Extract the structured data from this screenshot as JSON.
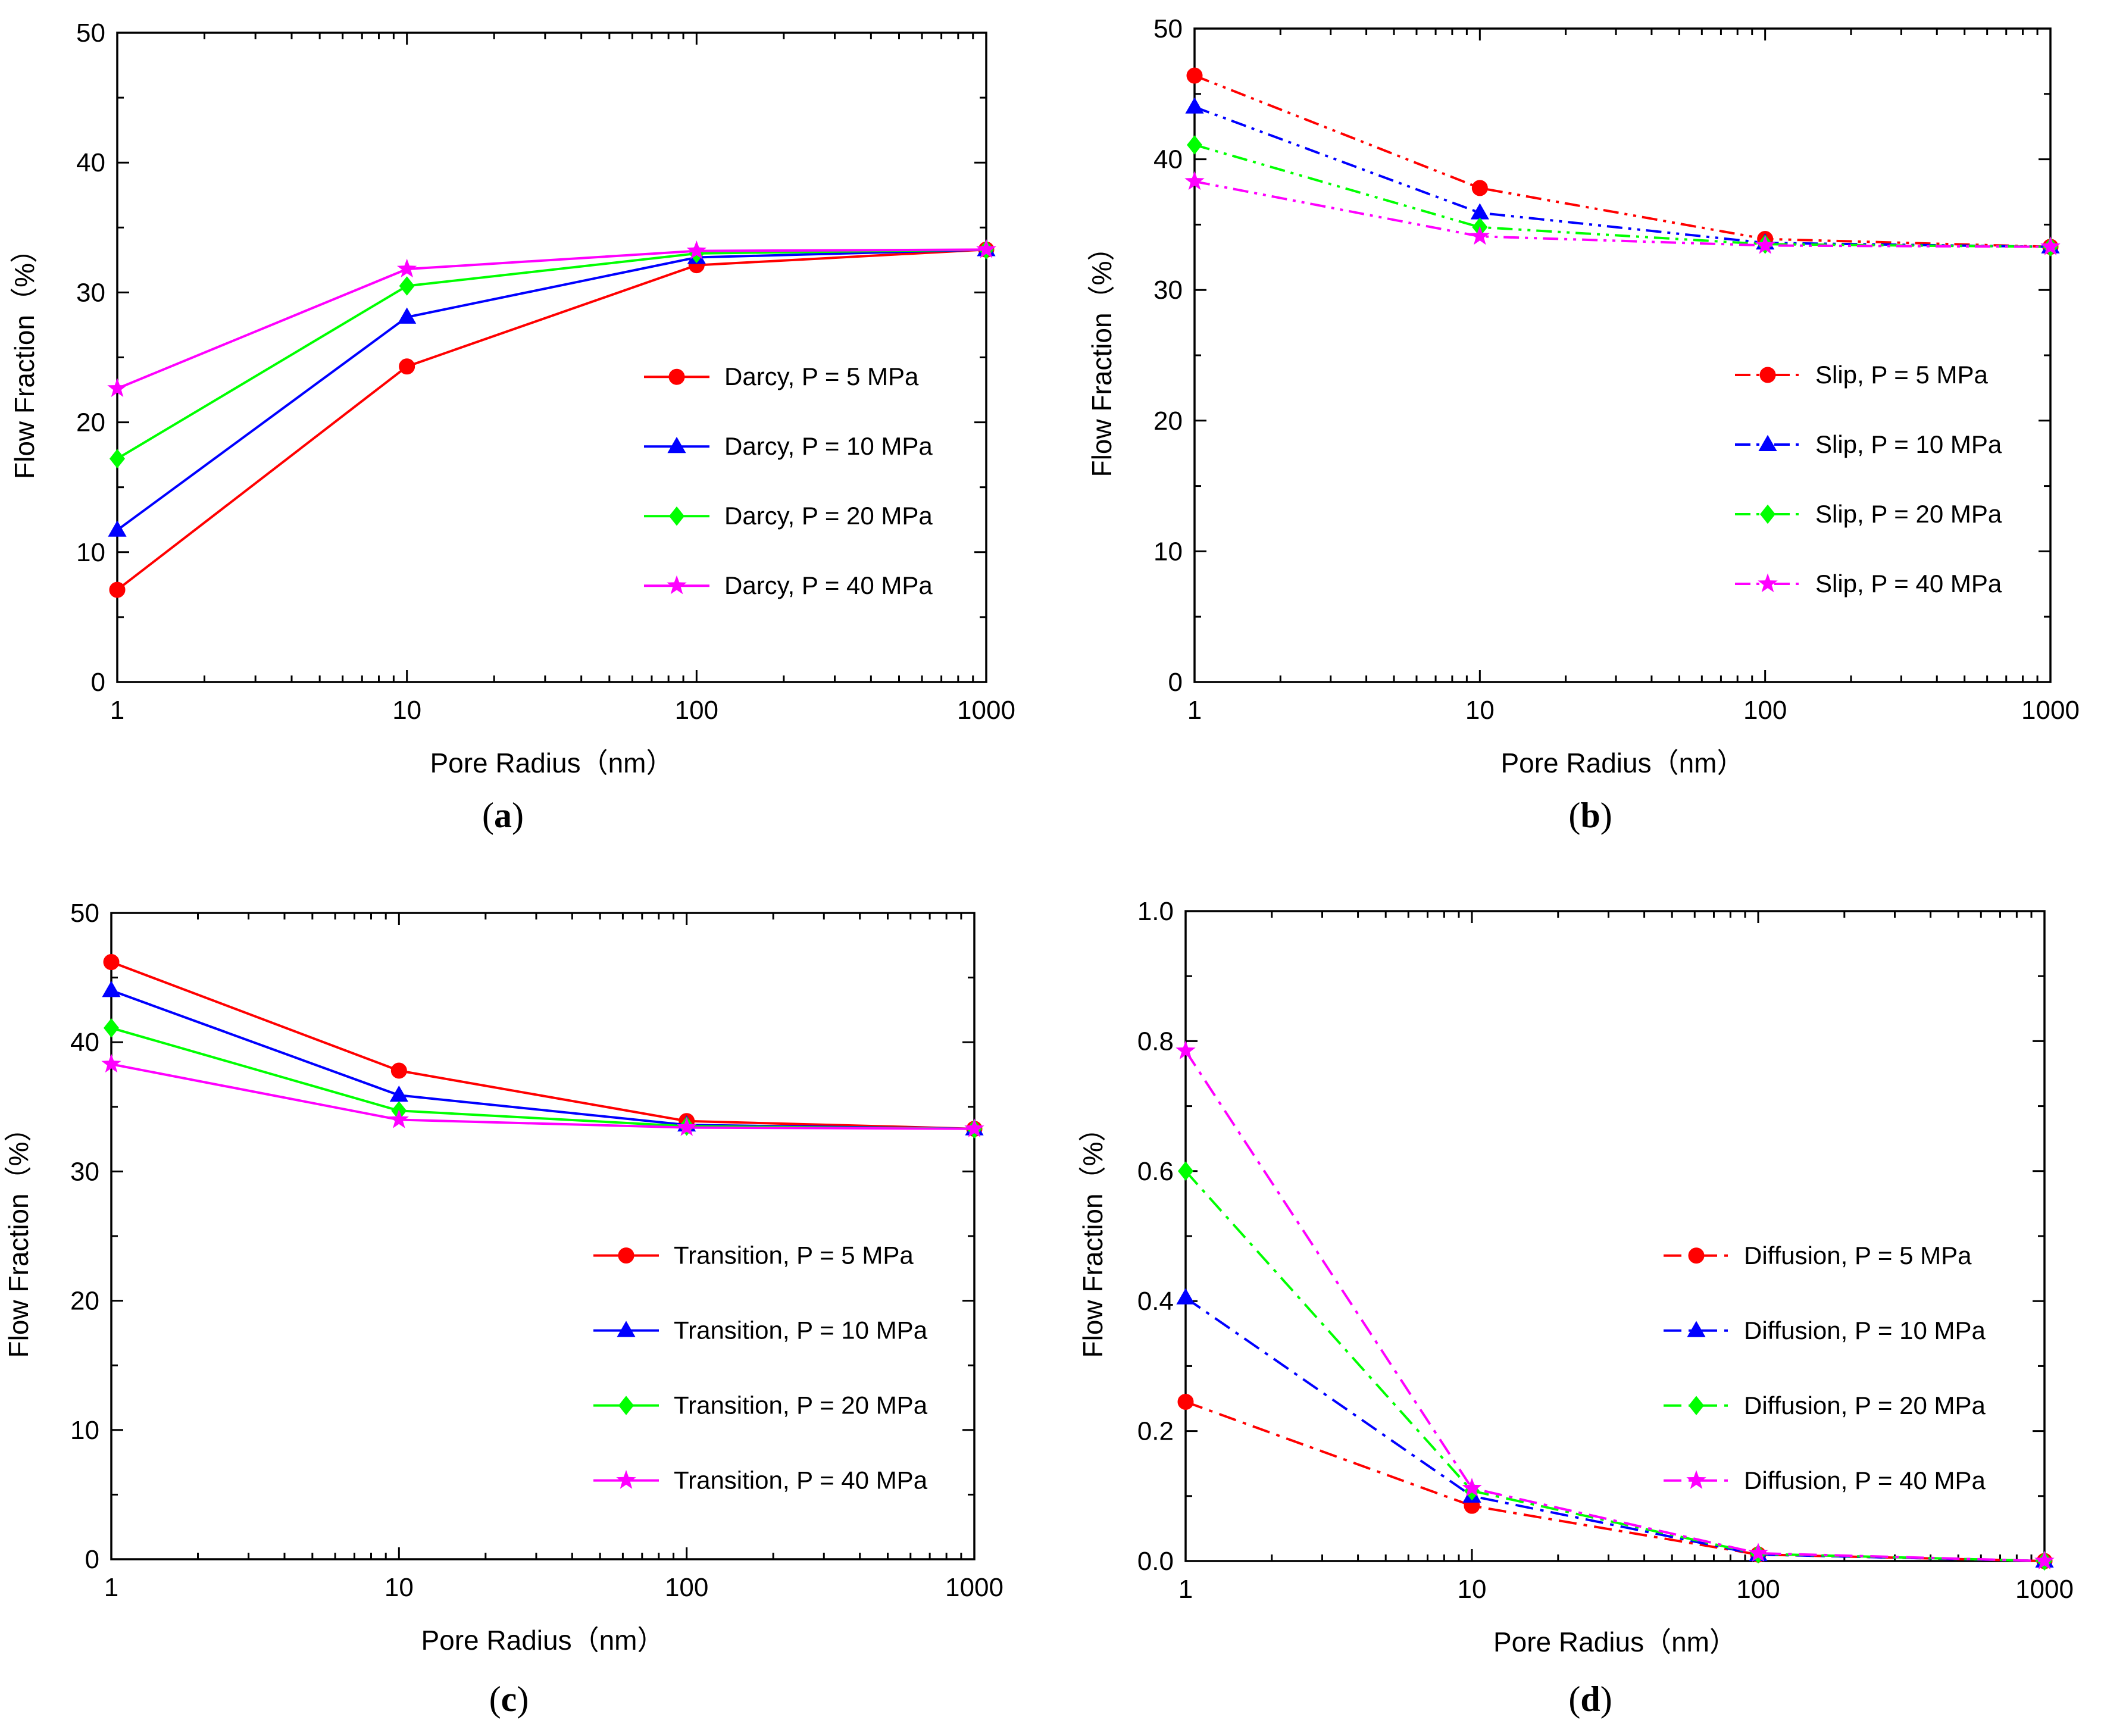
{
  "chart_data": [
    {
      "panel": "a",
      "type": "line",
      "xscale": "log",
      "xlim": [
        1,
        1000
      ],
      "ylim": [
        0,
        50
      ],
      "xticks": [
        "1",
        "10",
        "100",
        "1000"
      ],
      "yticks": [
        "0",
        "10",
        "20",
        "30",
        "40",
        "50"
      ],
      "xlabel": "Pore Radius（nm）",
      "ylabel": "Flow Fraction（%）",
      "panel_label": "a",
      "line_style": "solid",
      "legend_position": "right-middle",
      "x": [
        1,
        10,
        100,
        1000
      ],
      "series": [
        {
          "name": "Darcy, P = 5 MPa",
          "color": "#ff0000",
          "marker": "circle",
          "values": [
            7.1,
            24.3,
            32.1,
            33.3
          ]
        },
        {
          "name": "Darcy, P = 10 MPa",
          "color": "#0000ff",
          "marker": "triangle",
          "values": [
            11.7,
            28.1,
            32.7,
            33.3
          ]
        },
        {
          "name": "Darcy, P = 20 MPa",
          "color": "#00ff00",
          "marker": "diamond",
          "values": [
            17.2,
            30.5,
            33.0,
            33.3
          ]
        },
        {
          "name": "Darcy, P = 40 MPa",
          "color": "#ff00ff",
          "marker": "star",
          "values": [
            22.6,
            31.8,
            33.2,
            33.3
          ]
        }
      ]
    },
    {
      "panel": "b",
      "type": "line",
      "xscale": "log",
      "xlim": [
        1,
        1000
      ],
      "ylim": [
        0,
        50
      ],
      "xticks": [
        "1",
        "10",
        "100",
        "1000"
      ],
      "yticks": [
        "0",
        "10",
        "20",
        "30",
        "40",
        "50"
      ],
      "xlabel": "Pore Radius（nm）",
      "ylabel": "Flow Fraction（%）",
      "panel_label": "b",
      "line_style": "dashdotdot",
      "legend_position": "right-middle",
      "x": [
        1,
        10,
        100,
        1000
      ],
      "series": [
        {
          "name": "Slip, P = 5 MPa",
          "color": "#ff0000",
          "marker": "circle",
          "values": [
            46.4,
            37.8,
            33.9,
            33.3
          ]
        },
        {
          "name": "Slip, P = 10 MPa",
          "color": "#0000ff",
          "marker": "triangle",
          "values": [
            44.0,
            35.9,
            33.6,
            33.3
          ]
        },
        {
          "name": "Slip, P = 20 MPa",
          "color": "#00ff00",
          "marker": "diamond",
          "values": [
            41.1,
            34.8,
            33.5,
            33.3
          ]
        },
        {
          "name": "Slip, P = 40 MPa",
          "color": "#ff00ff",
          "marker": "star",
          "values": [
            38.3,
            34.1,
            33.4,
            33.3
          ]
        }
      ]
    },
    {
      "panel": "c",
      "type": "line",
      "xscale": "log",
      "xlim": [
        1,
        1000
      ],
      "ylim": [
        0,
        50
      ],
      "xticks": [
        "1",
        "10",
        "100",
        "1000"
      ],
      "yticks": [
        "0",
        "10",
        "20",
        "30",
        "40",
        "50"
      ],
      "xlabel": "Pore Radius（nm）",
      "ylabel": "Flow Fraction（%）",
      "panel_label": "c",
      "line_style": "solid",
      "legend_position": "right-middle",
      "x": [
        1,
        10,
        100,
        1000
      ],
      "series": [
        {
          "name": "Transition, P = 5 MPa",
          "color": "#ff0000",
          "marker": "circle",
          "values": [
            46.2,
            37.8,
            33.9,
            33.3
          ]
        },
        {
          "name": "Transition, P = 10 MPa",
          "color": "#0000ff",
          "marker": "triangle",
          "values": [
            44.0,
            35.9,
            33.6,
            33.3
          ]
        },
        {
          "name": "Transition, P = 20 MPa",
          "color": "#00ff00",
          "marker": "diamond",
          "values": [
            41.1,
            34.7,
            33.5,
            33.3
          ]
        },
        {
          "name": "Transition, P = 40 MPa",
          "color": "#ff00ff",
          "marker": "star",
          "values": [
            38.3,
            34.0,
            33.4,
            33.3
          ]
        }
      ]
    },
    {
      "panel": "d",
      "type": "line",
      "xscale": "log",
      "xlim": [
        1,
        1000
      ],
      "ylim": [
        0,
        1.0
      ],
      "xticks": [
        "1",
        "10",
        "100",
        "1000"
      ],
      "yticks": [
        "0.0",
        "0.2",
        "0.4",
        "0.6",
        "0.8",
        "1.0"
      ],
      "xlabel": "Pore Radius（nm）",
      "ylabel": "Flow Fraction（%）",
      "panel_label": "d",
      "line_style": "dashdot",
      "legend_position": "right-middle",
      "x": [
        1,
        10,
        100,
        1000
      ],
      "series": [
        {
          "name": "Diffusion, P = 5 MPa",
          "color": "#ff0000",
          "marker": "circle",
          "values": [
            0.245,
            0.085,
            0.01,
            0.0
          ]
        },
        {
          "name": "Diffusion, P = 10 MPa",
          "color": "#0000ff",
          "marker": "triangle",
          "values": [
            0.405,
            0.1,
            0.01,
            0.0
          ]
        },
        {
          "name": "Diffusion, P = 20 MPa",
          "color": "#00ff00",
          "marker": "diamond",
          "values": [
            0.6,
            0.108,
            0.011,
            0.0
          ]
        },
        {
          "name": "Diffusion, P = 40 MPa",
          "color": "#ff00ff",
          "marker": "star",
          "values": [
            0.785,
            0.112,
            0.012,
            0.0
          ]
        }
      ]
    }
  ]
}
